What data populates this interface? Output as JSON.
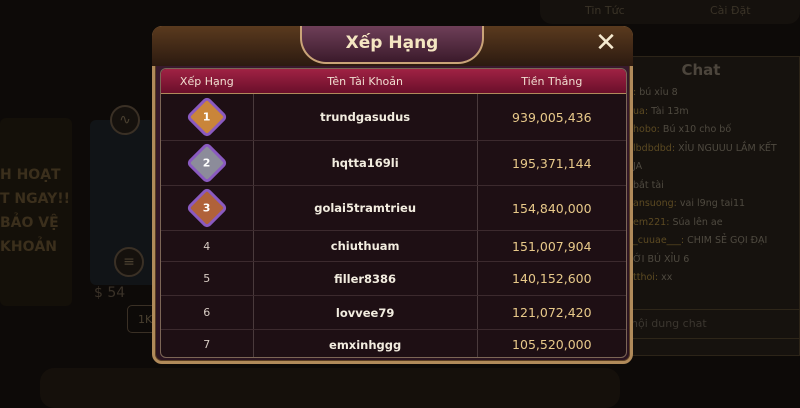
{
  "background": {
    "top_menu": [
      "Tin Tức",
      "Cài Đặt"
    ],
    "promo_lines": [
      "H HOẠT",
      "T NGAY!!",
      "BẢO VỆ",
      "KHOẢN"
    ],
    "card_value": "$ 54",
    "bet_chip": "1K"
  },
  "chat": {
    "title": "Chat",
    "messages": [
      {
        "user": ":",
        "text": "bú xỉu 8"
      },
      {
        "user": "ua:",
        "text": "Tài 13m"
      },
      {
        "user": "hobo:",
        "text": "Bú x10 cho bố"
      },
      {
        "user": "lbdbdbd:",
        "text": "XỈU NGUUU LẮM KẾT"
      },
      {
        "user": "",
        "text": "JA"
      },
      {
        "user": "",
        "text": "bắt tài"
      },
      {
        "user": "ansuong:",
        "text": "vai l9ng tai11"
      },
      {
        "user": "em221:",
        "text": "Súa lên ae"
      },
      {
        "user": "_cuuae___:",
        "text": "CHIM SẺ GỌI ĐẠI"
      },
      {
        "user": "",
        "text": "ỚI BÚ XỈU 6"
      },
      {
        "user": "tthoi:",
        "text": "xx"
      }
    ],
    "input_placeholder": "nội dung chat"
  },
  "modal": {
    "title": "Xếp Hạng",
    "close_icon": "close-icon",
    "columns": [
      "Xếp Hạng",
      "Tên Tài Khoản",
      "Tiền Thắng"
    ],
    "rows": [
      {
        "rank": "1",
        "name": "trundgasudus",
        "amount": "939,005,436",
        "medal": "gold"
      },
      {
        "rank": "2",
        "name": "hqtta169li",
        "amount": "195,371,144",
        "medal": "silver"
      },
      {
        "rank": "3",
        "name": "golai5tramtrieu",
        "amount": "154,840,000",
        "medal": "bronze"
      },
      {
        "rank": "4",
        "name": "chiuthuam",
        "amount": "151,007,904"
      },
      {
        "rank": "5",
        "name": "filler8386",
        "amount": "140,152,600"
      },
      {
        "rank": "6",
        "name": "lovvee79",
        "amount": "121,072,420"
      },
      {
        "rank": "7",
        "name": "emxinhggg",
        "amount": "105,520,000"
      }
    ],
    "medal_colors": {
      "gold": "#c9853a",
      "silver": "#8c8c9a",
      "bronze": "#b0623a"
    }
  }
}
